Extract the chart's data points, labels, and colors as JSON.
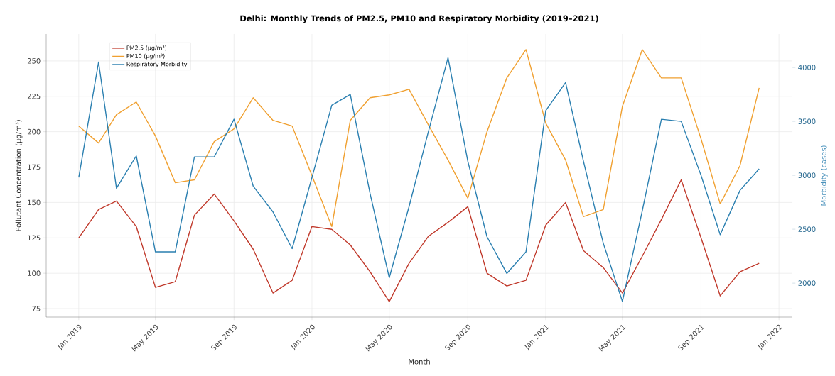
{
  "chart_data": {
    "type": "line",
    "title": "Delhi: Monthly Trends of PM2.5, PM10 and Respiratory Morbidity (2019–2021)",
    "xlabel": "Month",
    "ylabel": "Pollutant Concentration (µg/m³)",
    "y2label": "Morbidity (cases)",
    "x": [
      "2019-01",
      "2019-02",
      "2019-03",
      "2019-04",
      "2019-05",
      "2019-06",
      "2019-07",
      "2019-08",
      "2019-09",
      "2019-10",
      "2019-11",
      "2019-12",
      "2020-01",
      "2020-02",
      "2020-03",
      "2020-04",
      "2020-05",
      "2020-06",
      "2020-07",
      "2020-08",
      "2020-09",
      "2020-10",
      "2020-11",
      "2020-12",
      "2021-01",
      "2021-02",
      "2021-03",
      "2021-04",
      "2021-05",
      "2021-06",
      "2021-07",
      "2021-08",
      "2021-09",
      "2021-10",
      "2021-11",
      "2021-12"
    ],
    "series": [
      {
        "name": "PM2.5 (µg/m³)",
        "color": "#c0392b",
        "values": [
          125,
          145,
          151,
          133,
          90,
          94,
          141,
          156,
          137,
          117,
          86,
          95,
          133,
          131,
          120,
          101,
          80,
          107,
          126,
          136,
          147,
          100,
          91,
          95,
          134,
          150,
          116,
          104,
          86,
          112,
          138,
          166,
          125,
          84,
          101,
          107
        ]
      },
      {
        "name": "PM10 (µg/m³)",
        "color": "#f0a030",
        "values": [
          204,
          192,
          212,
          221,
          197,
          164,
          166,
          193,
          202,
          224,
          208,
          204,
          169,
          133,
          208,
          224,
          226,
          230,
          205,
          180,
          153,
          200,
          238,
          258,
          206,
          180,
          140,
          145,
          218,
          258,
          238,
          238,
          195,
          149,
          176,
          231
        ]
      },
      {
        "name": "Respiratory Morbidity",
        "color": "#2a7fb0",
        "axis": "y2",
        "values": [
          2980,
          4050,
          2880,
          3180,
          2290,
          2290,
          3170,
          3170,
          3520,
          2900,
          2660,
          2320,
          2980,
          3650,
          3750,
          2830,
          2050,
          2710,
          3400,
          4090,
          3130,
          2430,
          2090,
          2290,
          3600,
          3860,
          3130,
          2370,
          1830,
          2670,
          3520,
          3500,
          3000,
          2450,
          2860,
          3060
        ]
      }
    ],
    "xlim": [
      "2018-11-11",
      "2022-01-22"
    ],
    "xticks": [
      {
        "value": "2019-01",
        "label": "Jan 2019"
      },
      {
        "value": "2019-05",
        "label": "May 2019"
      },
      {
        "value": "2019-09",
        "label": "Sep 2019"
      },
      {
        "value": "2020-01",
        "label": "Jan 2020"
      },
      {
        "value": "2020-05",
        "label": "May 2020"
      },
      {
        "value": "2020-09",
        "label": "Sep 2020"
      },
      {
        "value": "2021-01",
        "label": "Jan 2021"
      },
      {
        "value": "2021-05",
        "label": "May 2021"
      },
      {
        "value": "2021-09",
        "label": "Sep 2021"
      },
      {
        "value": "2022-01",
        "label": "Jan 2022"
      }
    ],
    "ylim": [
      69,
      269
    ],
    "yticks": [
      75,
      100,
      125,
      150,
      175,
      200,
      225,
      250
    ],
    "y2lim": [
      1685,
      4310
    ],
    "y2ticks": [
      2000,
      2500,
      3000,
      3500,
      4000
    ],
    "grid": true,
    "legend": "top left",
    "marker": "none",
    "line_style": "solid"
  }
}
